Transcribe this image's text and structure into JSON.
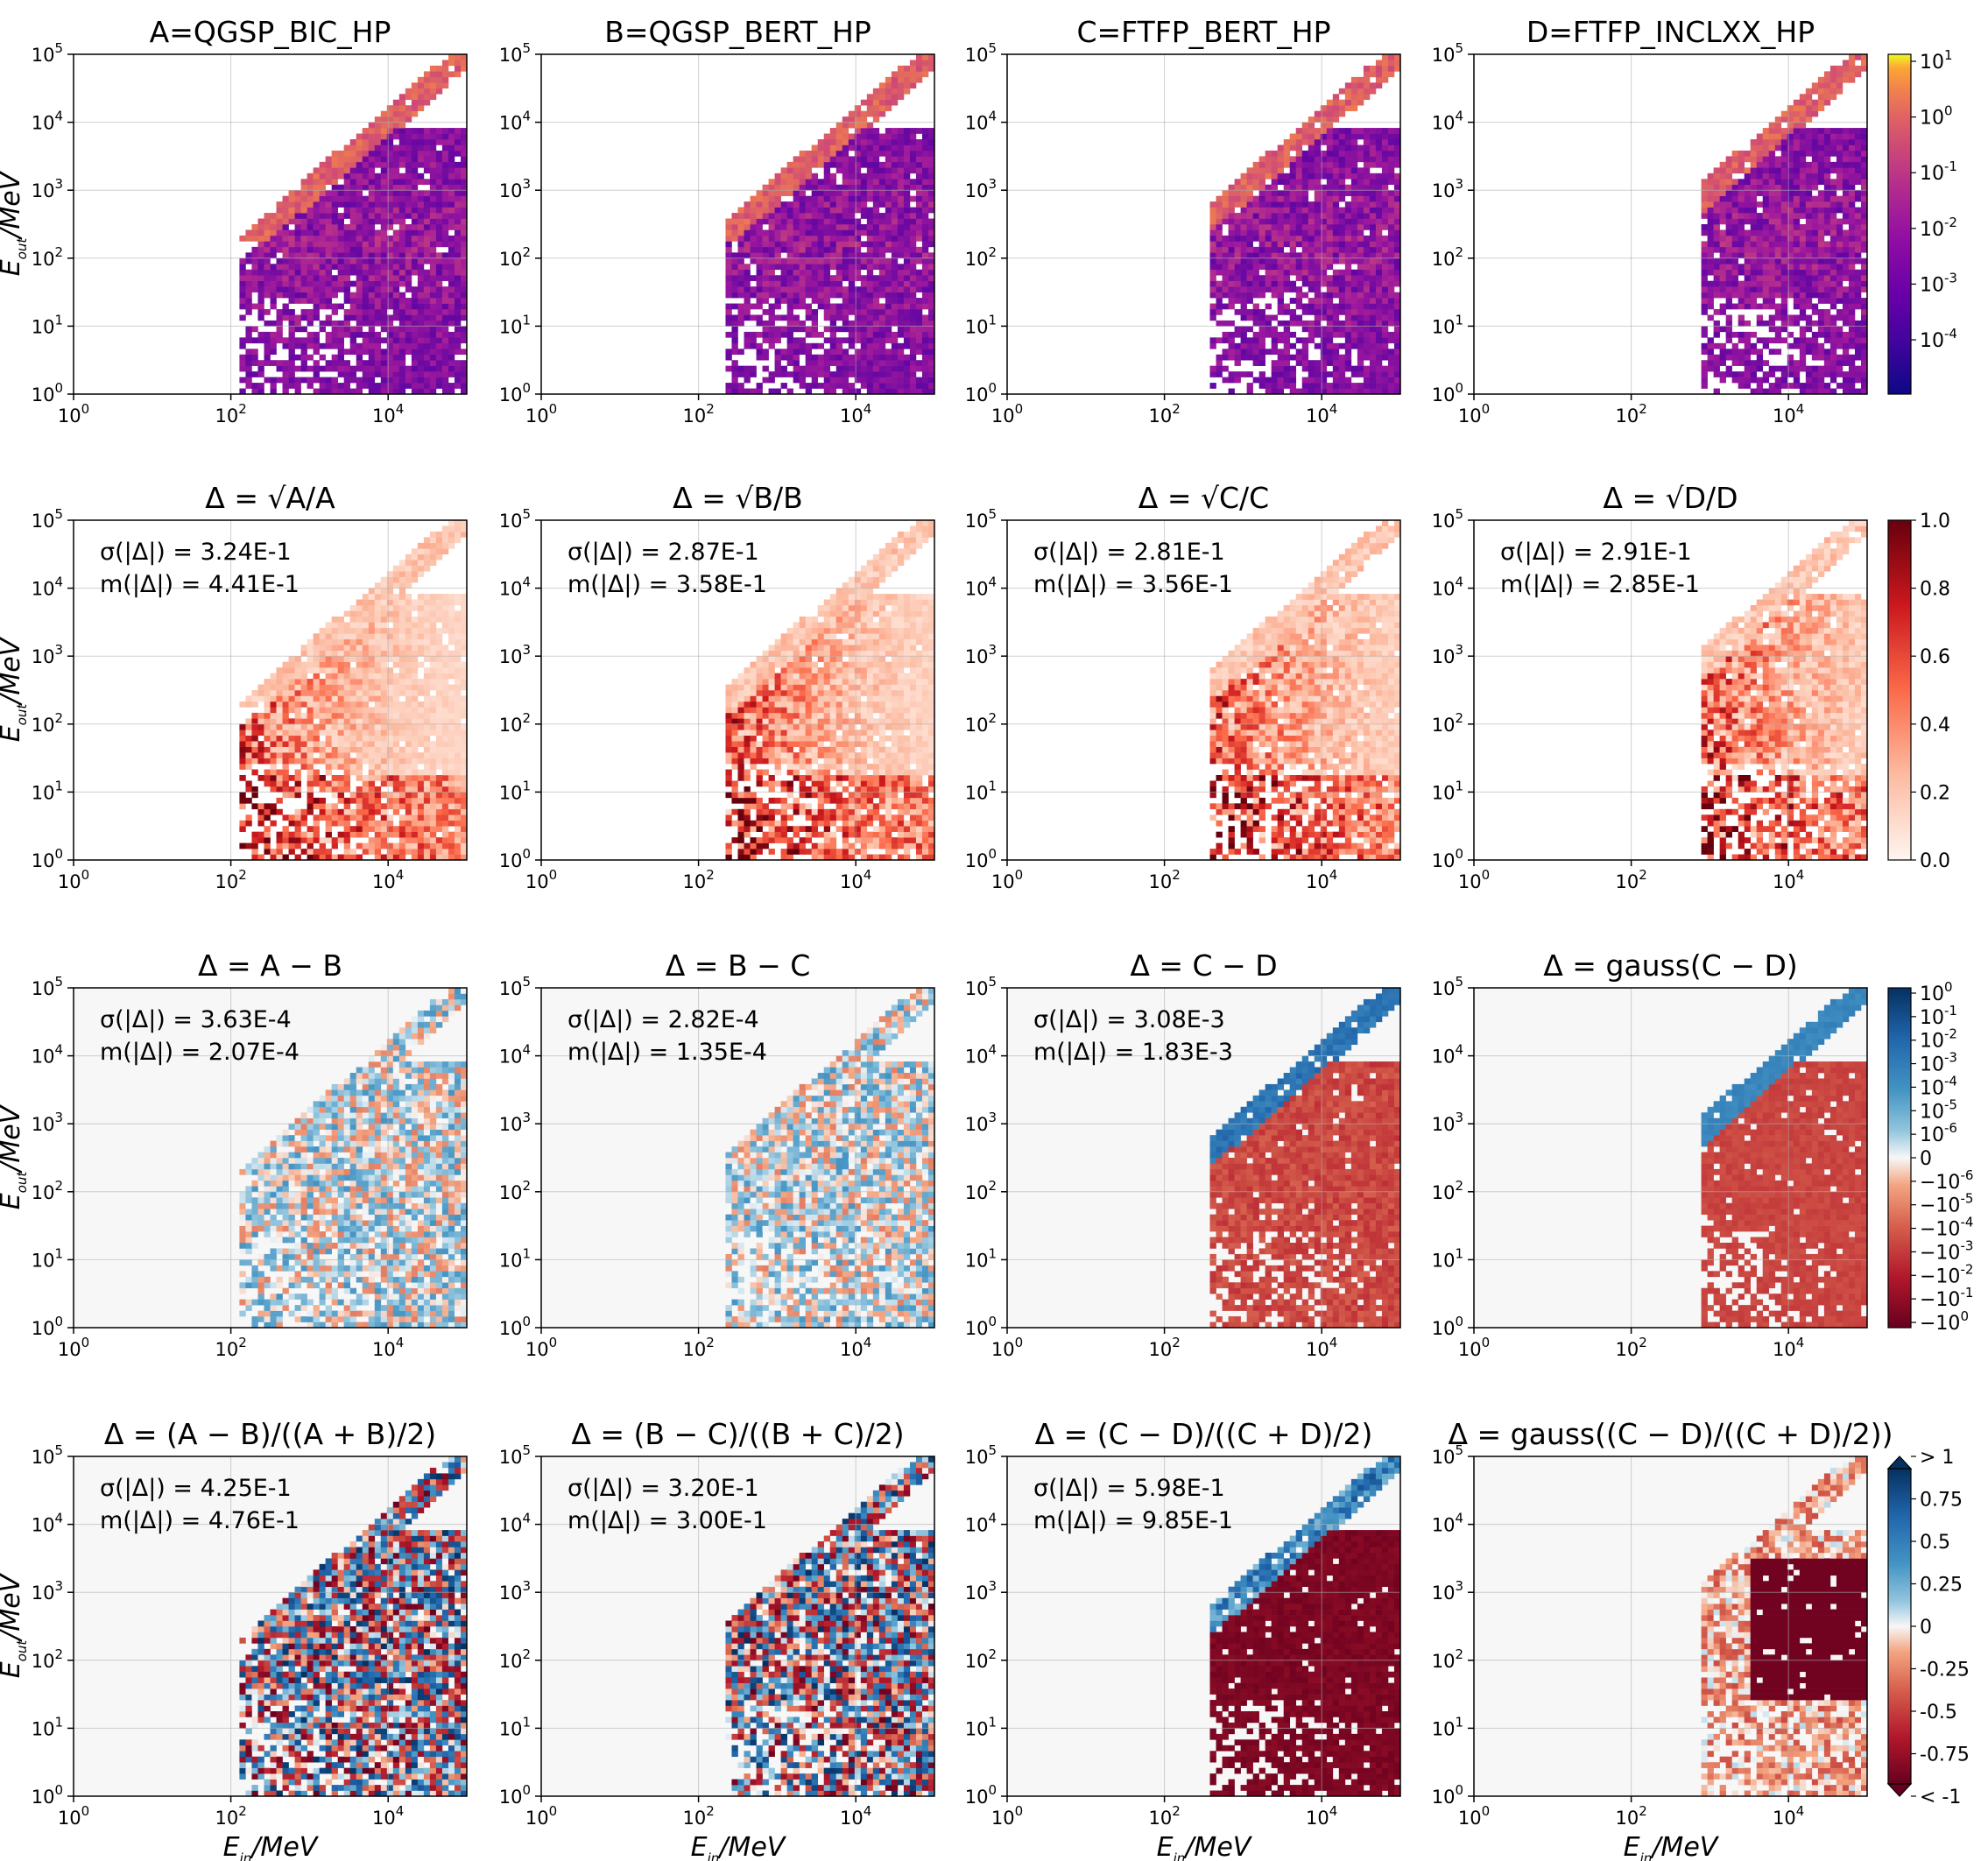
{
  "chart_data": {
    "type": "heatmap",
    "grid_shape": "4 rows x 4 columns of 2D histogram panels",
    "x_axis": {
      "label_base": "E",
      "label_sub": "in",
      "label_unit": "/MeV",
      "scale": "log",
      "range": [
        1,
        100000
      ],
      "tick_labels": [
        "10^0",
        "10^2",
        "10^4"
      ]
    },
    "y_axis": {
      "label_base": "E",
      "label_sub": "out",
      "label_unit": "/MeV",
      "scale": "log",
      "range": [
        1,
        100000
      ],
      "tick_labels": [
        "10^0",
        "10^1",
        "10^2",
        "10^3",
        "10^4",
        "10^5"
      ]
    },
    "grid": true,
    "rows": [
      {
        "row": 1,
        "colormap": "plasma",
        "colorbar": {
          "scale": "log",
          "range": [
            2e-05,
            10
          ],
          "tick_labels": [
            "10^1",
            "10^0",
            "10^-1",
            "10^-2",
            "10^-3",
            "10^-4"
          ]
        },
        "panels": [
          {
            "title": "A=QGSP_BIC_HP"
          },
          {
            "title": "B=QGSP_BERT_HP"
          },
          {
            "title": "C=FTFP_BERT_HP"
          },
          {
            "title": "D=FTFP_INCLXX_HP"
          }
        ]
      },
      {
        "row": 2,
        "colormap": "Reds",
        "colorbar": {
          "scale": "linear",
          "range": [
            0.0,
            1.0
          ],
          "tick_labels": [
            "1.0",
            "0.8",
            "0.6",
            "0.4",
            "0.2",
            "0.0"
          ]
        },
        "panels": [
          {
            "title": "Δ = √A/A",
            "sigma": "σ(|Δ|) = 3.24E-1",
            "median": "m(|Δ|) = 4.41E-1"
          },
          {
            "title": "Δ = √B/B",
            "sigma": "σ(|Δ|) = 2.87E-1",
            "median": "m(|Δ|) = 3.58E-1"
          },
          {
            "title": "Δ = √C/C",
            "sigma": "σ(|Δ|) = 2.81E-1",
            "median": "m(|Δ|) = 3.56E-1"
          },
          {
            "title": "Δ = √D/D",
            "sigma": "σ(|Δ|) = 2.91E-1",
            "median": "m(|Δ|) = 2.85E-1"
          }
        ]
      },
      {
        "row": 3,
        "colormap": "RdBu (symlog)",
        "colorbar": {
          "scale": "symlog",
          "range": [
            -1,
            1
          ],
          "tick_labels": [
            "10^0",
            "10^-1",
            "10^-2",
            "10^-3",
            "10^-4",
            "10^-5",
            "10^-6",
            "0",
            "−10^-6",
            "−10^-5",
            "−10^-4",
            "−10^-3",
            "−10^-2",
            "−10^-1",
            "−10^0"
          ]
        },
        "panels": [
          {
            "title": "Δ = A − B",
            "sigma": "σ(|Δ|) = 3.63E-4",
            "median": "m(|Δ|) = 2.07E-4"
          },
          {
            "title": "Δ = B − C",
            "sigma": "σ(|Δ|) = 2.82E-4",
            "median": "m(|Δ|) = 1.35E-4"
          },
          {
            "title": "Δ = C − D",
            "sigma": "σ(|Δ|) = 3.08E-3",
            "median": "m(|Δ|) = 1.83E-3"
          },
          {
            "title": "Δ = gauss(C − D)"
          }
        ]
      },
      {
        "row": 4,
        "colormap": "RdBu",
        "colorbar": {
          "scale": "linear",
          "range": [
            -1,
            1
          ],
          "extend": "both",
          "tick_labels": [
            "> 1",
            "0.75",
            "0.5",
            "0.25",
            "0",
            "-0.25",
            "-0.5",
            "-0.75",
            "< -1"
          ]
        },
        "panels": [
          {
            "title": "Δ = (A − B)/((A + B)/2)",
            "sigma": "σ(|Δ|) = 4.25E-1",
            "median": "m(|Δ|) = 4.76E-1"
          },
          {
            "title": "Δ = (B − C)/((B + C)/2)",
            "sigma": "σ(|Δ|) = 3.20E-1",
            "median": "m(|Δ|) = 3.00E-1"
          },
          {
            "title": "Δ = (C − D)/((C + D)/2)",
            "sigma": "σ(|Δ|) = 5.98E-1",
            "median": "m(|Δ|) = 9.85E-1"
          },
          {
            "title": "Δ = gauss((C − D)/((C + D)/2))"
          }
        ]
      }
    ]
  }
}
